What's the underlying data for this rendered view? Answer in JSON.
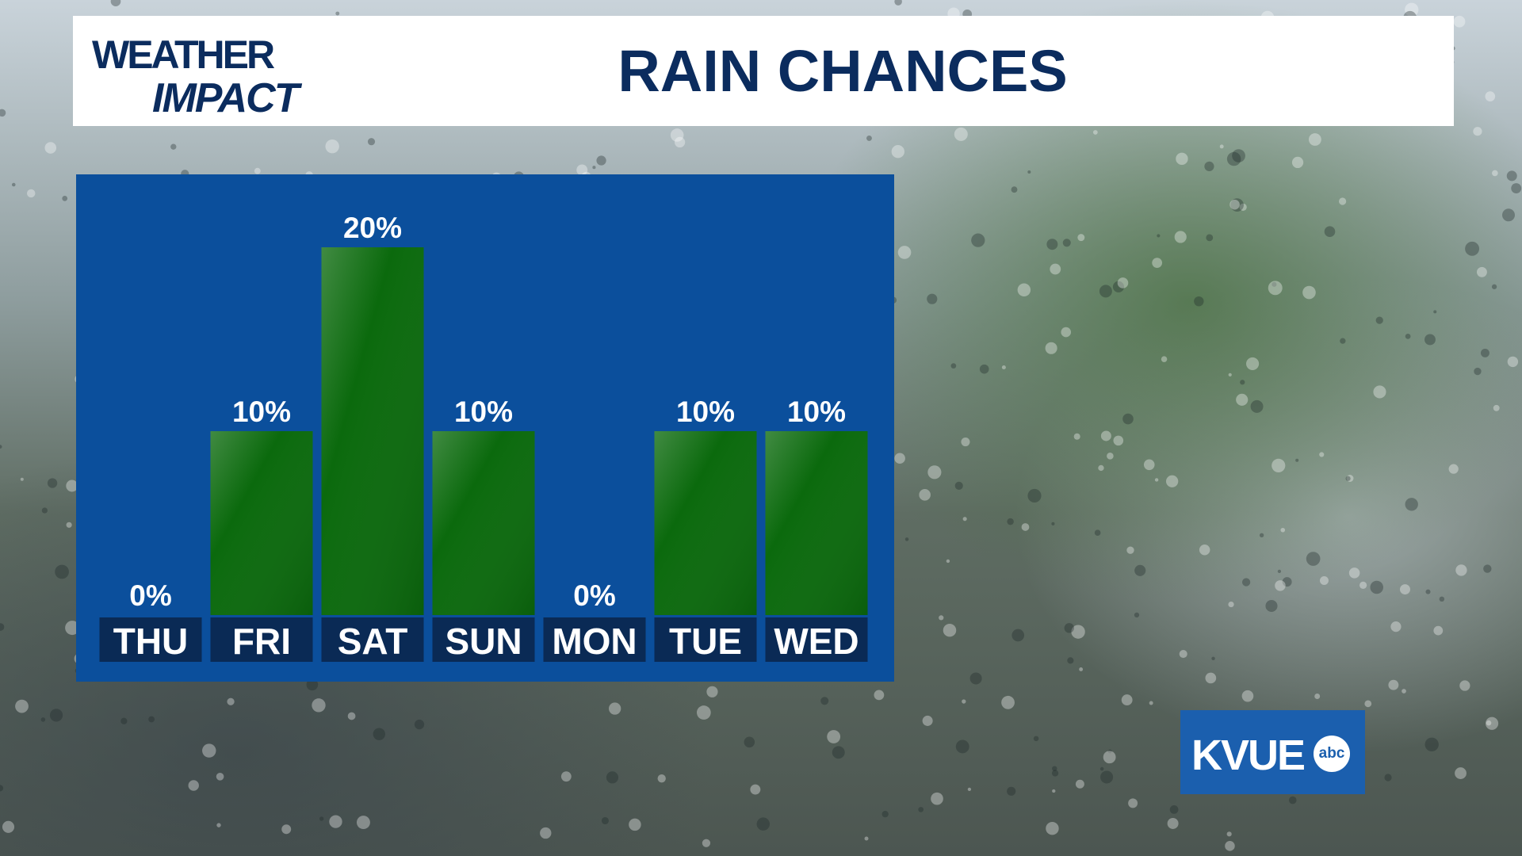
{
  "header": {
    "logo_line1": "WEATHER",
    "logo_line2": "IMPACT"
  },
  "chart_data": {
    "type": "bar",
    "title": "RAIN CHANCES",
    "categories": [
      "THU",
      "FRI",
      "SAT",
      "SUN",
      "MON",
      "TUE",
      "WED"
    ],
    "values": [
      0,
      10,
      20,
      10,
      0,
      10,
      10
    ],
    "value_labels": [
      "0%",
      "10%",
      "20%",
      "10%",
      "0%",
      "10%",
      "10%"
    ],
    "color": "#0b6a0d"
  },
  "station": {
    "name": "KVUE",
    "network": "abc"
  }
}
